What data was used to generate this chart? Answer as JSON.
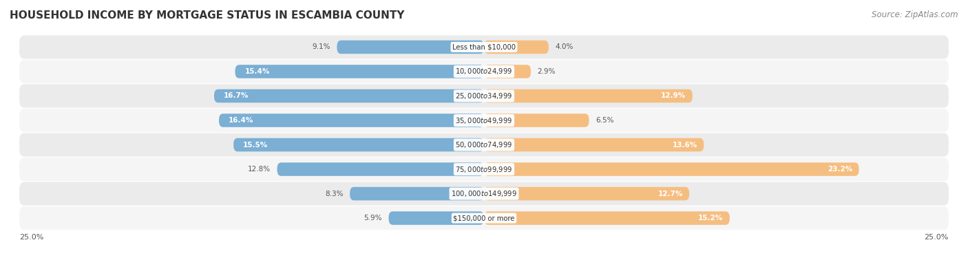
{
  "title": "HOUSEHOLD INCOME BY MORTGAGE STATUS IN ESCAMBIA COUNTY",
  "source": "Source: ZipAtlas.com",
  "categories": [
    "Less than $10,000",
    "$10,000 to $24,999",
    "$25,000 to $34,999",
    "$35,000 to $49,999",
    "$50,000 to $74,999",
    "$75,000 to $99,999",
    "$100,000 to $149,999",
    "$150,000 or more"
  ],
  "without_mortgage": [
    9.1,
    15.4,
    16.7,
    16.4,
    15.5,
    12.8,
    8.3,
    5.9
  ],
  "with_mortgage": [
    4.0,
    2.9,
    12.9,
    6.5,
    13.6,
    23.2,
    12.7,
    15.2
  ],
  "without_mortgage_color": "#7BAFD4",
  "with_mortgage_color": "#F5BE81",
  "axis_max": 25.0,
  "bg_row_even": "#EBEBEB",
  "bg_row_odd": "#F5F5F5",
  "bg_chart_color": "#FFFFFF",
  "title_fontsize": 11,
  "source_fontsize": 8.5,
  "bar_height": 0.55,
  "wo_inside_threshold": 13.0,
  "wm_inside_threshold": 11.0
}
